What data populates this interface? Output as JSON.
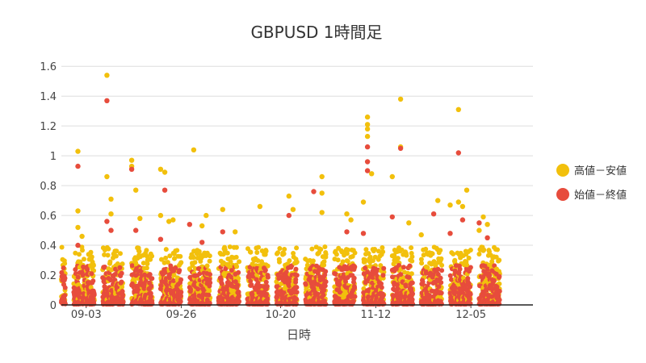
{
  "chart_data": {
    "type": "scatter",
    "title": "GBPUSD 1時間足",
    "xlabel": "日時",
    "ylabel": "",
    "ylim": [
      0,
      1.65
    ],
    "yticks": [
      0,
      0.2,
      0.4,
      0.6,
      0.8,
      1,
      1.2,
      1.4,
      1.6
    ],
    "ytick_labels": [
      "0",
      "0.2",
      "0.4",
      "0.6",
      "0.8",
      "1",
      "1.2",
      "1.4",
      "1.6"
    ],
    "xlim": [
      "2020-08-28",
      "2020-12-20"
    ],
    "xticks": [
      "2020-09-03",
      "2020-09-26",
      "2020-10-20",
      "2020-11-12",
      "2020-12-05"
    ],
    "xtick_labels": [
      "09-03",
      "09-26",
      "10-20",
      "11-12",
      "12-05"
    ],
    "grid": true,
    "legend_position": "right",
    "series": [
      {
        "name": "高値－安値",
        "color": "#f2c00c",
        "points": [
          [
            "2020-09-01",
            0.52
          ],
          [
            "2020-09-01",
            1.03
          ],
          [
            "2020-09-01",
            0.63
          ],
          [
            "2020-09-02",
            0.46
          ],
          [
            "2020-09-08",
            1.54
          ],
          [
            "2020-09-08",
            0.86
          ],
          [
            "2020-09-09",
            0.71
          ],
          [
            "2020-09-09",
            0.61
          ],
          [
            "2020-09-14",
            0.97
          ],
          [
            "2020-09-14",
            0.93
          ],
          [
            "2020-09-15",
            0.77
          ],
          [
            "2020-09-16",
            0.58
          ],
          [
            "2020-09-21",
            0.91
          ],
          [
            "2020-09-22",
            0.89
          ],
          [
            "2020-09-21",
            0.6
          ],
          [
            "2020-09-23",
            0.56
          ],
          [
            "2020-09-24",
            0.57
          ],
          [
            "2020-09-29",
            1.04
          ],
          [
            "2020-10-01",
            0.53
          ],
          [
            "2020-10-02",
            0.6
          ],
          [
            "2020-10-06",
            0.64
          ],
          [
            "2020-10-09",
            0.49
          ],
          [
            "2020-10-15",
            0.66
          ],
          [
            "2020-10-22",
            0.73
          ],
          [
            "2020-10-23",
            0.64
          ],
          [
            "2020-10-30",
            0.86
          ],
          [
            "2020-10-30",
            0.62
          ],
          [
            "2020-10-30",
            0.75
          ],
          [
            "2020-11-05",
            0.61
          ],
          [
            "2020-11-06",
            0.57
          ],
          [
            "2020-11-09",
            0.69
          ],
          [
            "2020-11-10",
            1.21
          ],
          [
            "2020-11-10",
            1.26
          ],
          [
            "2020-11-10",
            1.18
          ],
          [
            "2020-11-10",
            1.13
          ],
          [
            "2020-11-11",
            0.88
          ],
          [
            "2020-11-16",
            0.86
          ],
          [
            "2020-11-18",
            1.38
          ],
          [
            "2020-11-18",
            1.06
          ],
          [
            "2020-11-20",
            0.55
          ],
          [
            "2020-11-23",
            0.47
          ],
          [
            "2020-11-27",
            0.7
          ],
          [
            "2020-11-30",
            0.67
          ],
          [
            "2020-12-02",
            1.31
          ],
          [
            "2020-12-02",
            0.69
          ],
          [
            "2020-12-04",
            0.77
          ],
          [
            "2020-12-03",
            0.66
          ],
          [
            "2020-12-08",
            0.59
          ],
          [
            "2020-12-09",
            0.54
          ],
          [
            "2020-12-07",
            0.5
          ]
        ]
      },
      {
        "name": "始値－終値",
        "color": "#e74c3c",
        "points": [
          [
            "2020-09-01",
            0.93
          ],
          [
            "2020-09-01",
            0.4
          ],
          [
            "2020-09-08",
            1.37
          ],
          [
            "2020-09-08",
            0.56
          ],
          [
            "2020-09-09",
            0.5
          ],
          [
            "2020-09-14",
            0.91
          ],
          [
            "2020-09-15",
            0.5
          ],
          [
            "2020-09-21",
            0.44
          ],
          [
            "2020-09-22",
            0.77
          ],
          [
            "2020-09-28",
            0.54
          ],
          [
            "2020-10-01",
            0.42
          ],
          [
            "2020-10-06",
            0.49
          ],
          [
            "2020-10-22",
            0.6
          ],
          [
            "2020-10-28",
            0.76
          ],
          [
            "2020-11-05",
            0.49
          ],
          [
            "2020-11-10",
            1.06
          ],
          [
            "2020-11-10",
            0.96
          ],
          [
            "2020-11-10",
            0.9
          ],
          [
            "2020-11-09",
            0.48
          ],
          [
            "2020-11-16",
            0.59
          ],
          [
            "2020-11-18",
            1.05
          ],
          [
            "2020-11-26",
            0.61
          ],
          [
            "2020-11-30",
            0.48
          ],
          [
            "2020-12-02",
            1.02
          ],
          [
            "2020-12-03",
            0.57
          ],
          [
            "2020-12-07",
            0.55
          ],
          [
            "2020-12-09",
            0.45
          ]
        ]
      }
    ]
  }
}
